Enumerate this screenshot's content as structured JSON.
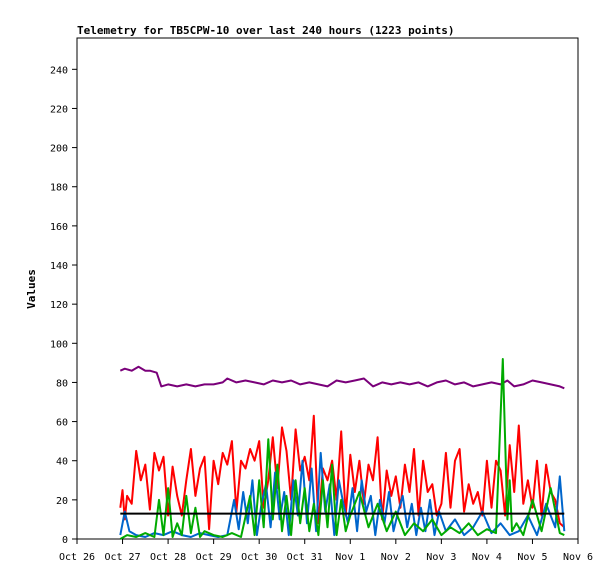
{
  "chart_data": {
    "type": "line",
    "title": "Telemetry for TB5CPW-10 over last 240 hours (1223 points)",
    "ylabel": "Values",
    "xlabel": "",
    "ylim": [
      0,
      256
    ],
    "y_ticks": [
      0,
      20,
      40,
      60,
      80,
      100,
      120,
      140,
      160,
      180,
      200,
      220,
      240
    ],
    "x_ticks": [
      "Oct 26",
      "Oct 27",
      "Oct 28",
      "Oct 29",
      "Oct 30",
      "Oct 31",
      "Nov 1",
      "Nov 2",
      "Nov 3",
      "Nov 4",
      "Nov 5",
      "Nov 6"
    ],
    "x_range_days": [
      0,
      11
    ],
    "colors": {
      "red": "#ff0000",
      "blue": "#0066cc",
      "green": "#00aa00",
      "purple": "#7a007a",
      "black": "#000000"
    },
    "series": [
      {
        "color": "#7a007a",
        "x": [
          0.95,
          1.05,
          1.2,
          1.35,
          1.5,
          1.6,
          1.75,
          1.85,
          2.0,
          2.2,
          2.4,
          2.6,
          2.8,
          3.0,
          3.2,
          3.3,
          3.5,
          3.7,
          3.9,
          4.1,
          4.3,
          4.5,
          4.7,
          4.9,
          5.1,
          5.3,
          5.5,
          5.7,
          5.9,
          6.1,
          6.3,
          6.5,
          6.7,
          6.9,
          7.1,
          7.3,
          7.5,
          7.7,
          7.9,
          8.1,
          8.3,
          8.5,
          8.7,
          8.9,
          9.1,
          9.3,
          9.45,
          9.6,
          9.8,
          10.0,
          10.2,
          10.4,
          10.6,
          10.7
        ],
        "values": [
          86,
          87,
          86,
          88,
          86,
          86,
          85,
          78,
          79,
          78,
          79,
          78,
          79,
          79,
          80,
          82,
          80,
          81,
          80,
          79,
          81,
          80,
          81,
          79,
          80,
          79,
          78,
          81,
          80,
          81,
          82,
          78,
          80,
          79,
          80,
          79,
          80,
          78,
          80,
          81,
          79,
          80,
          78,
          79,
          80,
          79,
          81,
          78,
          79,
          81,
          80,
          79,
          78,
          77
        ]
      },
      {
        "color": "#ff0000",
        "x": [
          0.95,
          1.0,
          1.05,
          1.1,
          1.2,
          1.3,
          1.4,
          1.5,
          1.6,
          1.7,
          1.8,
          1.9,
          2.0,
          2.1,
          2.2,
          2.3,
          2.4,
          2.5,
          2.6,
          2.7,
          2.8,
          2.9,
          3.0,
          3.1,
          3.2,
          3.3,
          3.4,
          3.5,
          3.6,
          3.7,
          3.8,
          3.9,
          4.0,
          4.1,
          4.2,
          4.3,
          4.4,
          4.5,
          4.6,
          4.7,
          4.8,
          4.9,
          5.0,
          5.1,
          5.2,
          5.3,
          5.4,
          5.5,
          5.6,
          5.7,
          5.8,
          5.9,
          6.0,
          6.1,
          6.2,
          6.3,
          6.4,
          6.5,
          6.6,
          6.7,
          6.8,
          6.9,
          7.0,
          7.1,
          7.2,
          7.3,
          7.4,
          7.5,
          7.6,
          7.7,
          7.8,
          7.9,
          8.0,
          8.1,
          8.2,
          8.3,
          8.4,
          8.5,
          8.6,
          8.7,
          8.8,
          8.9,
          9.0,
          9.1,
          9.2,
          9.3,
          9.4,
          9.5,
          9.6,
          9.7,
          9.8,
          9.9,
          10.0,
          10.1,
          10.2,
          10.3,
          10.4,
          10.5,
          10.6,
          10.7
        ],
        "values": [
          16,
          25,
          10,
          22,
          18,
          45,
          30,
          38,
          15,
          44,
          35,
          42,
          12,
          37,
          22,
          12,
          30,
          46,
          22,
          36,
          42,
          5,
          40,
          28,
          44,
          38,
          50,
          14,
          40,
          36,
          46,
          40,
          50,
          16,
          30,
          52,
          26,
          57,
          45,
          20,
          56,
          35,
          42,
          30,
          63,
          8,
          36,
          30,
          40,
          20,
          55,
          12,
          43,
          24,
          40,
          18,
          38,
          30,
          52,
          10,
          35,
          22,
          32,
          16,
          38,
          24,
          46,
          12,
          40,
          24,
          28,
          12,
          18,
          44,
          16,
          40,
          46,
          14,
          28,
          18,
          24,
          12,
          40,
          16,
          40,
          35,
          12,
          48,
          24,
          58,
          18,
          30,
          16,
          40,
          12,
          38,
          24,
          20,
          8,
          6
        ]
      },
      {
        "color": "#0066cc",
        "x": [
          0.95,
          1.05,
          1.15,
          1.3,
          1.5,
          1.7,
          1.9,
          2.1,
          2.3,
          2.5,
          2.7,
          2.9,
          3.1,
          3.3,
          3.45,
          3.55,
          3.65,
          3.75,
          3.85,
          3.95,
          4.05,
          4.15,
          4.25,
          4.35,
          4.45,
          4.55,
          4.65,
          4.75,
          4.85,
          4.95,
          5.05,
          5.15,
          5.25,
          5.35,
          5.45,
          5.55,
          5.65,
          5.75,
          5.85,
          5.95,
          6.05,
          6.15,
          6.25,
          6.35,
          6.45,
          6.55,
          6.65,
          6.75,
          6.85,
          6.95,
          7.05,
          7.15,
          7.25,
          7.35,
          7.45,
          7.55,
          7.65,
          7.75,
          7.85,
          7.95,
          8.1,
          8.3,
          8.5,
          8.7,
          8.9,
          9.1,
          9.3,
          9.5,
          9.7,
          9.9,
          10.1,
          10.3,
          10.5,
          10.6,
          10.7
        ],
        "values": [
          2,
          14,
          4,
          2,
          1,
          3,
          2,
          4,
          2,
          1,
          3,
          2,
          1,
          2,
          20,
          5,
          24,
          8,
          30,
          2,
          18,
          28,
          6,
          34,
          10,
          24,
          2,
          30,
          12,
          40,
          8,
          36,
          4,
          44,
          14,
          28,
          2,
          30,
          18,
          8,
          26,
          4,
          30,
          14,
          22,
          2,
          20,
          8,
          24,
          4,
          14,
          22,
          6,
          18,
          2,
          16,
          4,
          20,
          2,
          14,
          4,
          10,
          2,
          6,
          14,
          3,
          8,
          2,
          4,
          12,
          2,
          18,
          6,
          32,
          4
        ]
      },
      {
        "color": "#00aa00",
        "x": [
          0.95,
          1.1,
          1.3,
          1.5,
          1.7,
          1.8,
          1.9,
          2.0,
          2.1,
          2.2,
          2.3,
          2.4,
          2.5,
          2.6,
          2.7,
          2.8,
          3.0,
          3.2,
          3.4,
          3.6,
          3.8,
          3.9,
          4.0,
          4.1,
          4.2,
          4.3,
          4.4,
          4.5,
          4.6,
          4.7,
          4.8,
          4.9,
          5.0,
          5.1,
          5.2,
          5.3,
          5.4,
          5.5,
          5.6,
          5.7,
          5.8,
          5.9,
          6.0,
          6.2,
          6.4,
          6.6,
          6.8,
          7.0,
          7.2,
          7.4,
          7.6,
          7.8,
          8.0,
          8.2,
          8.4,
          8.6,
          8.8,
          9.0,
          9.2,
          9.35,
          9.45,
          9.5,
          9.55,
          9.65,
          9.8,
          10.0,
          10.2,
          10.4,
          10.6,
          10.7
        ],
        "values": [
          0,
          2,
          1,
          3,
          1,
          20,
          2,
          26,
          1,
          8,
          2,
          22,
          3,
          16,
          1,
          4,
          2,
          1,
          3,
          1,
          22,
          2,
          30,
          6,
          51,
          10,
          38,
          4,
          22,
          2,
          30,
          8,
          26,
          4,
          18,
          2,
          30,
          6,
          38,
          2,
          20,
          4,
          12,
          24,
          6,
          18,
          4,
          14,
          2,
          8,
          4,
          10,
          2,
          6,
          3,
          8,
          2,
          5,
          3,
          92,
          10,
          30,
          4,
          8,
          2,
          20,
          4,
          26,
          3,
          2
        ]
      },
      {
        "color": "#000000",
        "x": [
          0.95,
          10.7
        ],
        "values": [
          13,
          13
        ]
      }
    ]
  }
}
